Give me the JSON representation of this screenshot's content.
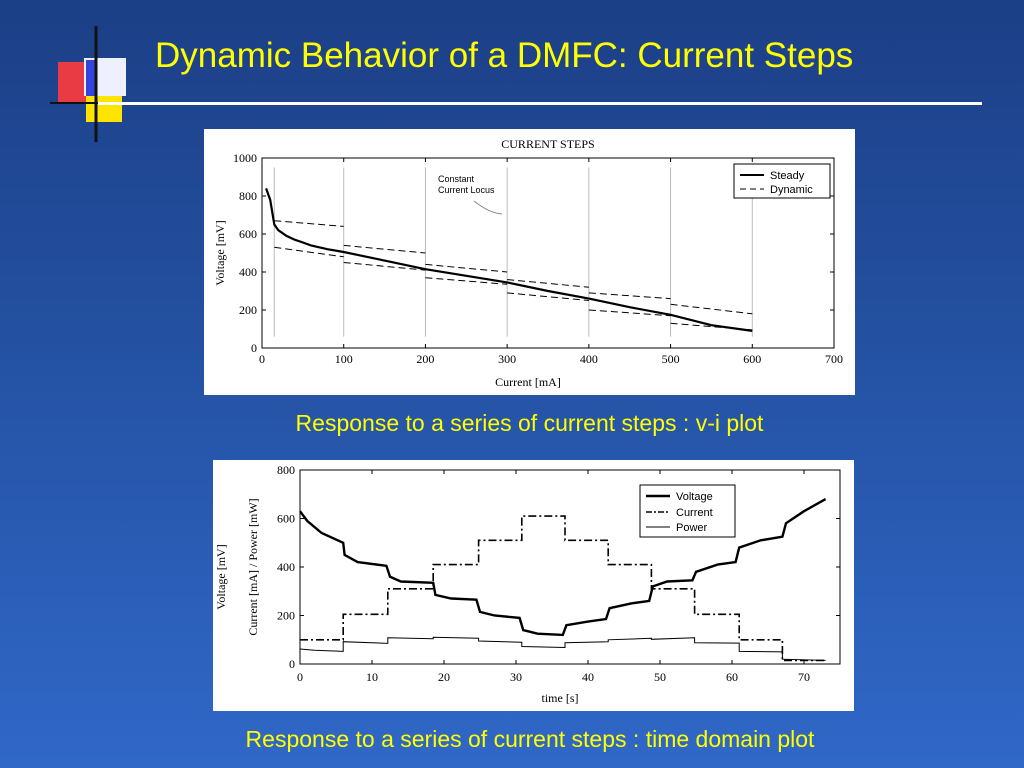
{
  "slide": {
    "title": "Dynamic Behavior of a DMFC: Current Steps",
    "caption_top": "Response to a series of current steps : v-i plot",
    "caption_bottom": "Response to a series of current steps : time domain plot",
    "colors": {
      "title": "#ffff00",
      "background": "#2451a2",
      "deco_red": "#ff3b3b",
      "deco_yellow": "#ffe400",
      "deco_blue": "#3344dd"
    }
  },
  "chart_data": [
    {
      "type": "line",
      "title": "CURRENT STEPS",
      "xlabel": "Current [mA]",
      "ylabel": "Voltage [mV]",
      "xlim": [
        0,
        700
      ],
      "ylim": [
        0,
        1000
      ],
      "xticks": [
        0,
        100,
        200,
        300,
        400,
        500,
        600,
        700
      ],
      "yticks": [
        0,
        200,
        400,
        600,
        800,
        1000
      ],
      "legend": [
        "Steady",
        "Dynamic"
      ],
      "legend_position": "top-right",
      "annotation": [
        "Constant",
        "Current Locus"
      ],
      "step_currents": [
        15,
        100,
        200,
        300,
        400,
        500,
        600
      ],
      "series": [
        {
          "name": "Steady",
          "x": [
            5,
            10,
            15,
            20,
            30,
            40,
            50,
            60,
            80,
            100,
            150,
            200,
            250,
            300,
            350,
            400,
            450,
            500,
            550,
            600
          ],
          "y": [
            840,
            780,
            650,
            620,
            590,
            570,
            555,
            540,
            520,
            505,
            460,
            415,
            380,
            345,
            300,
            260,
            215,
            175,
            120,
            90
          ]
        },
        {
          "name": "Dynamic",
          "segments": [
            {
              "x": [
                15,
                100
              ],
              "y": [
                670,
                640
              ]
            },
            {
              "x": [
                100,
                200
              ],
              "y": [
                540,
                500
              ]
            },
            {
              "x": [
                200,
                300
              ],
              "y": [
                440,
                400
              ]
            },
            {
              "x": [
                300,
                400
              ],
              "y": [
                360,
                320
              ]
            },
            {
              "x": [
                400,
                500
              ],
              "y": [
                290,
                260
              ]
            },
            {
              "x": [
                500,
                600
              ],
              "y": [
                230,
                180
              ]
            },
            {
              "x": [
                15,
                100
              ],
              "y": [
                530,
                480
              ]
            },
            {
              "x": [
                100,
                200
              ],
              "y": [
                450,
                410
              ]
            },
            {
              "x": [
                200,
                300
              ],
              "y": [
                370,
                335
              ]
            },
            {
              "x": [
                300,
                400
              ],
              "y": [
                290,
                250
              ]
            },
            {
              "x": [
                400,
                500
              ],
              "y": [
                200,
                170
              ]
            },
            {
              "x": [
                500,
                600
              ],
              "y": [
                130,
                95
              ]
            }
          ]
        }
      ]
    },
    {
      "type": "line",
      "xlabel": "time [s]",
      "ylabel_outer": "Voltage [mV]",
      "ylabel_inner": "Current [mA] / Power [mW]",
      "xlim": [
        0,
        75
      ],
      "ylim": [
        0,
        800
      ],
      "xticks": [
        0,
        10,
        20,
        30,
        40,
        50,
        60,
        70
      ],
      "yticks": [
        0,
        200,
        400,
        600,
        800
      ],
      "legend": [
        "Voltage",
        "Current",
        "Power"
      ],
      "legend_position": "top-right",
      "series": [
        {
          "name": "Voltage",
          "x": [
            0,
            1,
            3,
            6,
            6.2,
            8,
            12,
            12.5,
            14,
            18.5,
            18.8,
            21,
            24.5,
            25,
            27,
            30.5,
            31,
            33,
            36.5,
            37,
            40,
            42.5,
            43,
            46,
            48.5,
            49,
            51,
            54.5,
            55,
            58,
            60.5,
            61,
            64,
            67,
            67.5,
            70,
            73
          ],
          "y": [
            630,
            590,
            540,
            500,
            450,
            420,
            405,
            360,
            340,
            335,
            285,
            270,
            265,
            215,
            200,
            190,
            140,
            125,
            120,
            160,
            175,
            185,
            230,
            250,
            260,
            320,
            340,
            345,
            380,
            410,
            420,
            480,
            510,
            525,
            580,
            630,
            680
          ]
        },
        {
          "name": "Current",
          "x": [
            0,
            6,
            6,
            12.2,
            12.2,
            18.5,
            18.5,
            24.8,
            24.8,
            30.8,
            30.8,
            36.8,
            36.8,
            42.8,
            42.8,
            48.8,
            48.8,
            54.8,
            54.8,
            61,
            61,
            67,
            67,
            73
          ],
          "y": [
            100,
            100,
            205,
            205,
            310,
            310,
            410,
            410,
            510,
            510,
            610,
            610,
            510,
            510,
            410,
            410,
            310,
            310,
            205,
            205,
            100,
            100,
            15,
            15
          ]
        },
        {
          "name": "Power",
          "x": [
            0,
            2,
            6,
            6,
            12.2,
            12.2,
            18.5,
            18.5,
            24.8,
            24.8,
            30.8,
            30.8,
            36.8,
            36.8,
            42.8,
            42.8,
            48.8,
            48.8,
            54.8,
            54.8,
            61,
            61,
            67,
            67,
            73
          ],
          "y": [
            62,
            57,
            52,
            92,
            85,
            108,
            104,
            110,
            106,
            95,
            90,
            72,
            68,
            88,
            92,
            100,
            106,
            102,
            108,
            88,
            86,
            52,
            50,
            20,
            15
          ]
        }
      ]
    }
  ]
}
